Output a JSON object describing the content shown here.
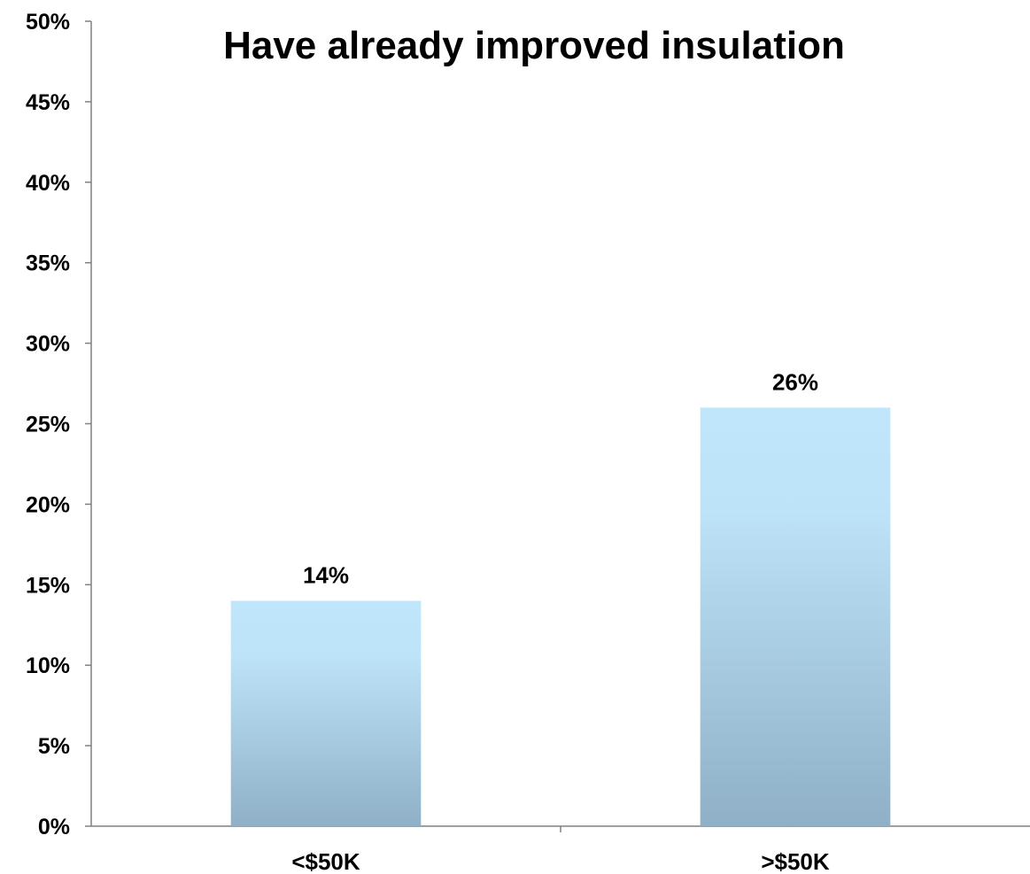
{
  "chart_data": {
    "type": "bar",
    "title": "Have already improved insulation",
    "xlabel": "",
    "ylabel": "",
    "categories": [
      "<$50K",
      ">$50K"
    ],
    "values": [
      14,
      26
    ],
    "data_labels": [
      "14%",
      "26%"
    ],
    "ylim": [
      0,
      50
    ],
    "yticks": [
      0,
      5,
      10,
      15,
      20,
      25,
      30,
      35,
      40,
      45,
      50
    ],
    "ytick_labels": [
      "0%",
      "5%",
      "10%",
      "15%",
      "20%",
      "25%",
      "30%",
      "35%",
      "40%",
      "45%",
      "50%"
    ],
    "grid": false,
    "legend": "none",
    "colors": {
      "bar_top": "#c0e6fc",
      "bar_bottom": "#8fb0c6",
      "axis": "#808080",
      "text": "#000000"
    }
  }
}
